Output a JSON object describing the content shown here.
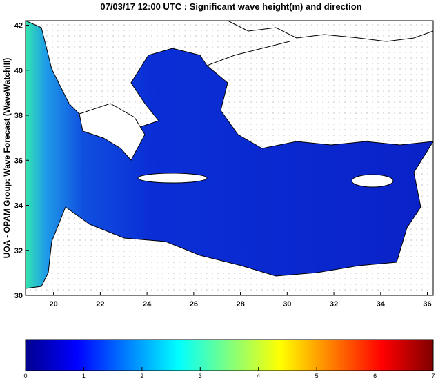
{
  "title": "07/03/17 12:00 UTC : Significant wave height(m) and direction",
  "map": {
    "ylabel": "UOA - OPAM Group: Wave Forecast (WaveWatchIII)",
    "xlim": [
      18.8,
      36.25
    ],
    "ylim": [
      30,
      42.2
    ],
    "xticks": [
      20,
      22,
      24,
      26,
      28,
      30,
      32,
      34,
      36
    ],
    "yticks": [
      30,
      32,
      34,
      36,
      38,
      40,
      42
    ]
  },
  "colorbar": {
    "lim": [
      0,
      7
    ],
    "ticks": [
      0,
      1,
      2,
      3,
      4,
      5,
      6,
      7
    ]
  }
}
